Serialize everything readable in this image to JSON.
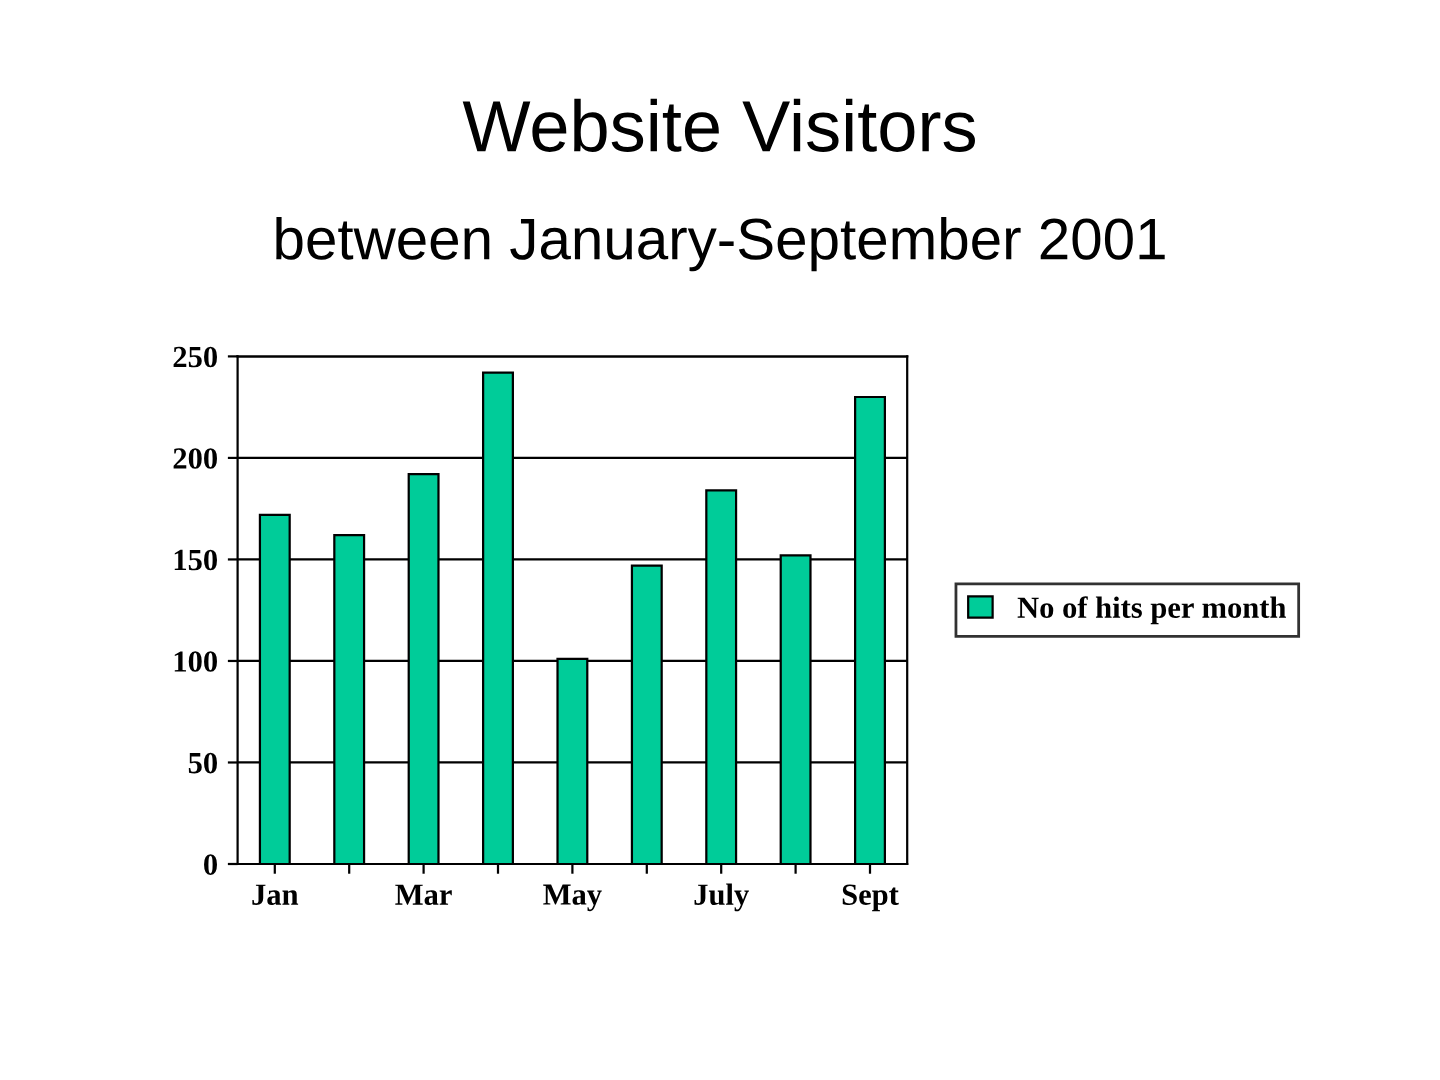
{
  "chart_data": {
    "type": "bar",
    "title": "Website Visitors",
    "subtitle": "between January-September 2001",
    "categories": [
      "Jan",
      null,
      "Mar",
      null,
      "May",
      null,
      "July",
      null,
      "Sept"
    ],
    "series": [
      {
        "name": "No of hits per month",
        "color": "#00cc99",
        "values": [
          172,
          162,
          192,
          242,
          101,
          147,
          184,
          152,
          230
        ]
      }
    ],
    "ylim": [
      0,
      250
    ],
    "yticks": [
      0,
      50,
      100,
      150,
      200,
      250
    ],
    "grid": "y",
    "legend": "right"
  }
}
